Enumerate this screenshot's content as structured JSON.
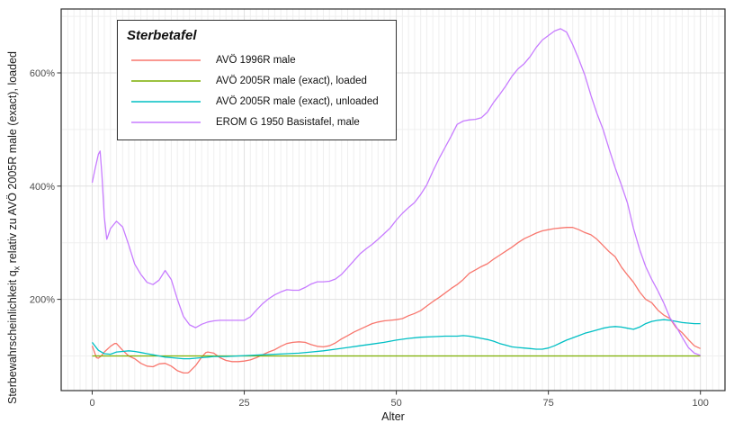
{
  "chart_data": {
    "type": "line",
    "title": "",
    "xlabel": "Alter",
    "ylabel": "Sterbewahrscheinlichkeit qx relativ zu AVÖ 2005R male (exact), loaded",
    "ylabel_parts": {
      "prefix": "Sterbewahrscheinlichkeit q",
      "sub": "x",
      "suffix": " relativ zu AVÖ 2005R male (exact), loaded"
    },
    "legend_title": "Sterbetafel",
    "legend_position": "top-left-inside",
    "grid": "on",
    "x_range": [
      -5,
      104
    ],
    "y_range_percent": [
      55,
      710
    ],
    "x_ticks": [
      {
        "value": 0,
        "label": "0"
      },
      {
        "value": 25,
        "label": "25"
      },
      {
        "value": 50,
        "label": "50"
      },
      {
        "value": 75,
        "label": "75"
      },
      {
        "value": 100,
        "label": "100"
      }
    ],
    "y_ticks": [
      {
        "value": 200,
        "label": "200%"
      },
      {
        "value": 400,
        "label": "400%"
      },
      {
        "value": 600,
        "label": "600%"
      }
    ],
    "y_minor_gridlines": [
      100,
      300,
      500,
      700
    ],
    "x_minor_gridline_step": 1,
    "series": [
      {
        "name": "AVÖ 1996R male",
        "color": "#F8766D",
        "points": [
          [
            0,
            118
          ],
          [
            0.7,
            97
          ],
          [
            1,
            96
          ],
          [
            1.5,
            100
          ],
          [
            2,
            107
          ],
          [
            3,
            117
          ],
          [
            3.7,
            122
          ],
          [
            4,
            122
          ],
          [
            5,
            110
          ],
          [
            6,
            100
          ],
          [
            7,
            95
          ],
          [
            8,
            87
          ],
          [
            9,
            82
          ],
          [
            10,
            81
          ],
          [
            11,
            86
          ],
          [
            12,
            87
          ],
          [
            13,
            82
          ],
          [
            14,
            74
          ],
          [
            15,
            70
          ],
          [
            15.7,
            70
          ],
          [
            16,
            72
          ],
          [
            17,
            83
          ],
          [
            18,
            98
          ],
          [
            18.7,
            106
          ],
          [
            19,
            107
          ],
          [
            20,
            105
          ],
          [
            21,
            97
          ],
          [
            22,
            92
          ],
          [
            23,
            90
          ],
          [
            24,
            90
          ],
          [
            25,
            91
          ],
          [
            26,
            93
          ],
          [
            27,
            97
          ],
          [
            28,
            102
          ],
          [
            29,
            107
          ],
          [
            30,
            111
          ],
          [
            31,
            117
          ],
          [
            32,
            122
          ],
          [
            33,
            124
          ],
          [
            34,
            125
          ],
          [
            35,
            124
          ],
          [
            36,
            120
          ],
          [
            37,
            117
          ],
          [
            38,
            116
          ],
          [
            39,
            118
          ],
          [
            40,
            123
          ],
          [
            41,
            130
          ],
          [
            42,
            136
          ],
          [
            43,
            142
          ],
          [
            44,
            147
          ],
          [
            45,
            152
          ],
          [
            46,
            157
          ],
          [
            47,
            160
          ],
          [
            48,
            162
          ],
          [
            49,
            163
          ],
          [
            50,
            164
          ],
          [
            51,
            166
          ],
          [
            52,
            171
          ],
          [
            53,
            175
          ],
          [
            54,
            180
          ],
          [
            55,
            188
          ],
          [
            56,
            196
          ],
          [
            57,
            203
          ],
          [
            58,
            211
          ],
          [
            59,
            219
          ],
          [
            60,
            226
          ],
          [
            61,
            235
          ],
          [
            62,
            246
          ],
          [
            63,
            252
          ],
          [
            64,
            258
          ],
          [
            65,
            263
          ],
          [
            66,
            271
          ],
          [
            67,
            278
          ],
          [
            68,
            285
          ],
          [
            69,
            292
          ],
          [
            70,
            300
          ],
          [
            71,
            307
          ],
          [
            72,
            312
          ],
          [
            73,
            317
          ],
          [
            74,
            321
          ],
          [
            75,
            323
          ],
          [
            76,
            325
          ],
          [
            77,
            326
          ],
          [
            78,
            327
          ],
          [
            79,
            327
          ],
          [
            80,
            323
          ],
          [
            81,
            318
          ],
          [
            82,
            314
          ],
          [
            83,
            306
          ],
          [
            84,
            295
          ],
          [
            85,
            284
          ],
          [
            86,
            275
          ],
          [
            87,
            257
          ],
          [
            88,
            243
          ],
          [
            89,
            230
          ],
          [
            90,
            213
          ],
          [
            91,
            200
          ],
          [
            92,
            194
          ],
          [
            93,
            181
          ],
          [
            94,
            172
          ],
          [
            95,
            166
          ],
          [
            96,
            150
          ],
          [
            97,
            141
          ],
          [
            98,
            129
          ],
          [
            99,
            118
          ],
          [
            100,
            113
          ]
        ]
      },
      {
        "name": "AVÖ 2005R male (exact), loaded",
        "color": "#7CAE00",
        "points": [
          [
            0,
            100
          ],
          [
            100,
            100
          ]
        ]
      },
      {
        "name": "AVÖ 2005R male (exact), unloaded",
        "color": "#00BFC4",
        "points": [
          [
            0,
            124
          ],
          [
            1,
            110
          ],
          [
            2,
            104
          ],
          [
            3,
            103
          ],
          [
            4,
            107
          ],
          [
            5,
            108
          ],
          [
            6,
            109
          ],
          [
            7,
            108
          ],
          [
            8,
            106
          ],
          [
            9,
            104
          ],
          [
            10,
            102
          ],
          [
            11,
            100
          ],
          [
            12,
            98
          ],
          [
            13,
            97
          ],
          [
            14,
            96
          ],
          [
            15,
            95
          ],
          [
            16,
            95
          ],
          [
            17,
            96
          ],
          [
            18,
            97
          ],
          [
            19,
            98
          ],
          [
            20,
            99
          ],
          [
            22,
            99
          ],
          [
            24,
            100
          ],
          [
            26,
            101
          ],
          [
            28,
            102
          ],
          [
            30,
            103
          ],
          [
            32,
            104
          ],
          [
            34,
            105
          ],
          [
            36,
            107
          ],
          [
            38,
            109
          ],
          [
            40,
            112
          ],
          [
            42,
            115
          ],
          [
            44,
            118
          ],
          [
            46,
            121
          ],
          [
            48,
            124
          ],
          [
            50,
            128
          ],
          [
            52,
            131
          ],
          [
            54,
            133
          ],
          [
            56,
            134
          ],
          [
            58,
            135
          ],
          [
            60,
            135
          ],
          [
            61,
            136
          ],
          [
            62,
            135
          ],
          [
            63,
            133
          ],
          [
            64,
            131
          ],
          [
            65,
            129
          ],
          [
            66,
            126
          ],
          [
            67,
            122
          ],
          [
            68,
            119
          ],
          [
            69,
            116
          ],
          [
            70,
            115
          ],
          [
            71,
            114
          ],
          [
            72,
            113
          ],
          [
            73,
            112
          ],
          [
            74,
            112
          ],
          [
            75,
            114
          ],
          [
            76,
            118
          ],
          [
            77,
            123
          ],
          [
            78,
            128
          ],
          [
            79,
            132
          ],
          [
            80,
            136
          ],
          [
            81,
            140
          ],
          [
            82,
            143
          ],
          [
            83,
            146
          ],
          [
            84,
            149
          ],
          [
            85,
            151
          ],
          [
            86,
            152
          ],
          [
            87,
            151
          ],
          [
            88,
            149
          ],
          [
            89,
            147
          ],
          [
            90,
            151
          ],
          [
            91,
            157
          ],
          [
            92,
            161
          ],
          [
            93,
            163
          ],
          [
            94,
            164
          ],
          [
            95,
            163
          ],
          [
            96,
            161
          ],
          [
            97,
            159
          ],
          [
            98,
            158
          ],
          [
            99,
            157
          ],
          [
            100,
            157
          ]
        ]
      },
      {
        "name": "EROM G 1950 Basistafel, male",
        "color": "#C77CFF",
        "points": [
          [
            0,
            406
          ],
          [
            0.5,
            432
          ],
          [
            1,
            456
          ],
          [
            1.3,
            462
          ],
          [
            1.6,
            420
          ],
          [
            2,
            345
          ],
          [
            2.4,
            306
          ],
          [
            3,
            325
          ],
          [
            4,
            338
          ],
          [
            5,
            328
          ],
          [
            6,
            296
          ],
          [
            7,
            262
          ],
          [
            8,
            244
          ],
          [
            9,
            230
          ],
          [
            10,
            226
          ],
          [
            11,
            234
          ],
          [
            12,
            251
          ],
          [
            13,
            235
          ],
          [
            14,
            200
          ],
          [
            15,
            170
          ],
          [
            16,
            155
          ],
          [
            17,
            150
          ],
          [
            18,
            156
          ],
          [
            19,
            160
          ],
          [
            20,
            162
          ],
          [
            21,
            163
          ],
          [
            22,
            163
          ],
          [
            23,
            163
          ],
          [
            24,
            163
          ],
          [
            25,
            163
          ],
          [
            26,
            169
          ],
          [
            27,
            181
          ],
          [
            28,
            192
          ],
          [
            29,
            201
          ],
          [
            30,
            208
          ],
          [
            31,
            213
          ],
          [
            32,
            217
          ],
          [
            33,
            216
          ],
          [
            34,
            216
          ],
          [
            35,
            221
          ],
          [
            36,
            227
          ],
          [
            37,
            231
          ],
          [
            38,
            231
          ],
          [
            39,
            232
          ],
          [
            40,
            236
          ],
          [
            41,
            244
          ],
          [
            42,
            256
          ],
          [
            43,
            268
          ],
          [
            44,
            280
          ],
          [
            45,
            289
          ],
          [
            46,
            297
          ],
          [
            47,
            306
          ],
          [
            48,
            316
          ],
          [
            49,
            326
          ],
          [
            50,
            340
          ],
          [
            51,
            352
          ],
          [
            52,
            362
          ],
          [
            53,
            371
          ],
          [
            54,
            385
          ],
          [
            55,
            402
          ],
          [
            56,
            426
          ],
          [
            57,
            448
          ],
          [
            58,
            468
          ],
          [
            59,
            488
          ],
          [
            60,
            509
          ],
          [
            61,
            515
          ],
          [
            62,
            517
          ],
          [
            63,
            518
          ],
          [
            64,
            521
          ],
          [
            65,
            531
          ],
          [
            66,
            548
          ],
          [
            67,
            562
          ],
          [
            68,
            577
          ],
          [
            69,
            594
          ],
          [
            70,
            607
          ],
          [
            71,
            616
          ],
          [
            72,
            629
          ],
          [
            73,
            645
          ],
          [
            74,
            658
          ],
          [
            75,
            666
          ],
          [
            76,
            674
          ],
          [
            77,
            678
          ],
          [
            78,
            672
          ],
          [
            79,
            650
          ],
          [
            80,
            624
          ],
          [
            81,
            596
          ],
          [
            82,
            560
          ],
          [
            83,
            528
          ],
          [
            84,
            500
          ],
          [
            85,
            465
          ],
          [
            86,
            432
          ],
          [
            87,
            402
          ],
          [
            88,
            370
          ],
          [
            89,
            325
          ],
          [
            90,
            288
          ],
          [
            91,
            258
          ],
          [
            92,
            235
          ],
          [
            93,
            215
          ],
          [
            94,
            193
          ],
          [
            95,
            167
          ],
          [
            96,
            152
          ],
          [
            97,
            133
          ],
          [
            98,
            115
          ],
          [
            99,
            105
          ],
          [
            100,
            101
          ]
        ]
      }
    ]
  }
}
